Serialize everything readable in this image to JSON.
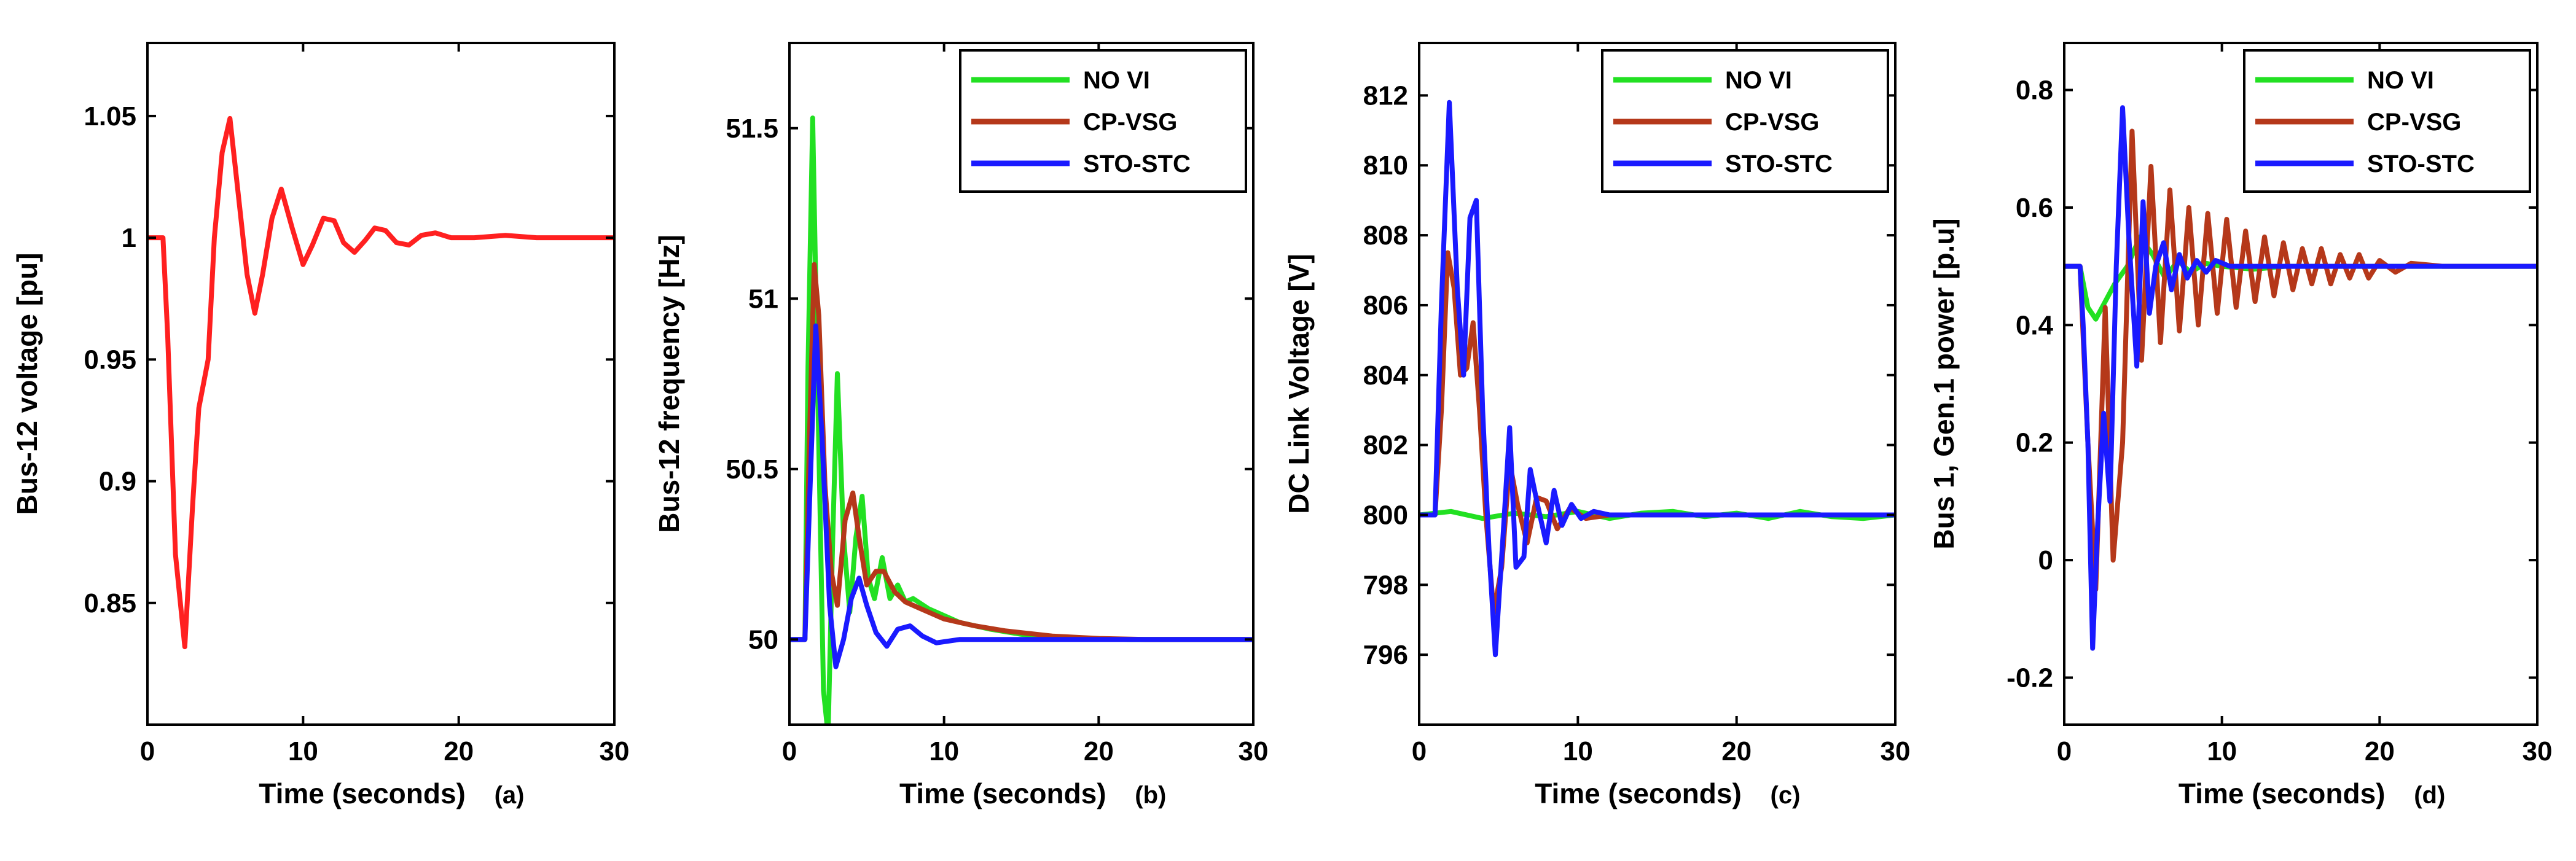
{
  "chart_data": [
    {
      "type": "line",
      "panel_label": "(a)",
      "xlabel": "Time (seconds)",
      "ylabel": "Bus-12 voltage [pu]",
      "xlim": [
        0,
        30
      ],
      "ylim": [
        0.8,
        1.08
      ],
      "xticks": [
        0,
        10,
        20,
        30
      ],
      "yticks": [
        0.85,
        0.9,
        0.95,
        1,
        1.05
      ],
      "legend": "none",
      "series": [
        {
          "name": "Bus-12 voltage",
          "color": "#ff2020",
          "x": [
            0,
            1,
            1.3,
            1.8,
            2.4,
            2.9,
            3.3,
            3.9,
            4.3,
            4.8,
            5.3,
            5.8,
            6.4,
            6.9,
            7.4,
            8.0,
            8.6,
            9.3,
            10.0,
            10.6,
            11.3,
            12.0,
            12.6,
            13.3,
            14.0,
            14.6,
            15.3,
            16.0,
            16.8,
            17.6,
            18.5,
            19.5,
            21,
            23,
            25,
            30
          ],
          "y": [
            1.0,
            1.0,
            0.96,
            0.87,
            0.832,
            0.89,
            0.93,
            0.95,
            1.0,
            1.035,
            1.049,
            1.02,
            0.985,
            0.969,
            0.985,
            1.008,
            1.02,
            1.004,
            0.989,
            0.997,
            1.008,
            1.007,
            0.998,
            0.994,
            0.999,
            1.004,
            1.003,
            0.998,
            0.997,
            1.001,
            1.002,
            1.0,
            1.0,
            1.001,
            1.0,
            1.0
          ]
        }
      ]
    },
    {
      "type": "line",
      "panel_label": "(b)",
      "xlabel": "Time (seconds)",
      "ylabel": "Bus-12 frequency [Hz]",
      "xlim": [
        0,
        30
      ],
      "ylim": [
        49.75,
        51.75
      ],
      "xticks": [
        0,
        10,
        20,
        30
      ],
      "yticks": [
        50,
        50.5,
        51,
        51.5
      ],
      "legend": "top-right",
      "series": [
        {
          "name": "NO VI",
          "color": "#22e022",
          "x": [
            0,
            1.0,
            1.2,
            1.5,
            1.8,
            2.2,
            2.5,
            2.8,
            3.1,
            3.5,
            3.9,
            4.3,
            4.7,
            5.1,
            5.5,
            6.0,
            6.5,
            7.0,
            7.5,
            8.0,
            9,
            10,
            11,
            13,
            15,
            18,
            22,
            30
          ],
          "y": [
            50,
            50,
            50.8,
            51.53,
            50.8,
            49.85,
            49.72,
            50.3,
            50.78,
            50.3,
            50.08,
            50.3,
            50.42,
            50.18,
            50.12,
            50.24,
            50.12,
            50.16,
            50.11,
            50.12,
            50.09,
            50.07,
            50.05,
            50.03,
            50.015,
            50.005,
            50.0,
            50.0
          ]
        },
        {
          "name": "CP-VSG",
          "color": "#b5381a",
          "x": [
            0,
            1.0,
            1.3,
            1.6,
            1.9,
            2.3,
            2.7,
            3.1,
            3.6,
            4.1,
            4.5,
            5.0,
            5.6,
            6.1,
            6.8,
            7.5,
            8.5,
            10,
            12,
            14,
            17,
            20,
            23,
            30
          ],
          "y": [
            50,
            50,
            50.6,
            51.1,
            50.95,
            50.45,
            50.2,
            50.1,
            50.35,
            50.43,
            50.3,
            50.16,
            50.2,
            50.2,
            50.14,
            50.11,
            50.09,
            50.06,
            50.04,
            50.025,
            50.01,
            50.003,
            50.0,
            50.0
          ]
        },
        {
          "name": "STO-STC",
          "color": "#1a1aff",
          "x": [
            0,
            1.0,
            1.3,
            1.7,
            2.1,
            2.6,
            3.0,
            3.5,
            4.0,
            4.5,
            5.0,
            5.6,
            6.3,
            7.0,
            7.8,
            8.6,
            9.5,
            11,
            13,
            30
          ],
          "y": [
            50,
            50,
            50.4,
            50.92,
            50.6,
            50.1,
            49.92,
            50.0,
            50.12,
            50.18,
            50.1,
            50.02,
            49.98,
            50.03,
            50.04,
            50.01,
            49.99,
            50.0,
            50.0,
            50.0
          ]
        }
      ]
    },
    {
      "type": "line",
      "panel_label": "(c)",
      "xlabel": "Time (seconds)",
      "ylabel": "DC Link Voltage [V]",
      "xlim": [
        0,
        30
      ],
      "ylim": [
        794,
        813.5
      ],
      "xticks": [
        0,
        10,
        20,
        30
      ],
      "yticks": [
        796,
        798,
        800,
        802,
        804,
        806,
        808,
        810,
        812
      ],
      "legend": "top-right",
      "series": [
        {
          "name": "NO VI",
          "color": "#22e022",
          "x": [
            0,
            2,
            4,
            6,
            8,
            10,
            12,
            14,
            16,
            18,
            20,
            22,
            24,
            26,
            28,
            30
          ],
          "y": [
            800,
            800.1,
            799.9,
            800.05,
            799.95,
            800.1,
            799.9,
            800.05,
            800.1,
            799.95,
            800.05,
            799.9,
            800.1,
            799.95,
            799.9,
            800
          ]
        },
        {
          "name": "CP-VSG",
          "color": "#b5381a",
          "x": [
            0,
            1.0,
            1.4,
            1.8,
            2.2,
            2.6,
            3.0,
            3.4,
            3.8,
            4.2,
            4.7,
            5.2,
            5.7,
            6.2,
            6.8,
            7.4,
            8.0,
            8.7,
            9.5,
            10.5,
            12,
            30
          ],
          "y": [
            800,
            800,
            803,
            807.5,
            806.5,
            804,
            804.2,
            805.5,
            803,
            800,
            797.2,
            798.5,
            801.5,
            800.3,
            799.2,
            800.5,
            800.4,
            799.6,
            800.2,
            799.9,
            800,
            800
          ]
        },
        {
          "name": "STO-STC",
          "color": "#1a1aff",
          "x": [
            0,
            1.0,
            1.4,
            1.9,
            2.4,
            2.8,
            3.2,
            3.6,
            4.0,
            4.4,
            4.8,
            5.3,
            5.7,
            6.1,
            6.6,
            7.0,
            7.5,
            8.0,
            8.5,
            9.0,
            9.6,
            10.2,
            11,
            12,
            30
          ],
          "y": [
            800,
            800,
            806,
            811.8,
            806.5,
            804,
            808.5,
            809,
            803,
            799,
            796,
            799.5,
            802.5,
            798.5,
            798.8,
            801.3,
            800.2,
            799.2,
            800.7,
            799.7,
            800.3,
            799.9,
            800.1,
            800,
            800
          ]
        }
      ]
    },
    {
      "type": "line",
      "panel_label": "(d)",
      "xlabel": "Time (seconds)",
      "ylabel": "Bus 1, Gen.1 power [p.u]",
      "xlim": [
        0,
        30
      ],
      "ylim": [
        -0.28,
        0.88
      ],
      "xticks": [
        0,
        10,
        20,
        30
      ],
      "yticks": [
        -0.2,
        0,
        0.2,
        0.4,
        0.6,
        0.8
      ],
      "legend": "top-right",
      "series": [
        {
          "name": "NO VI",
          "color": "#22e022",
          "x": [
            0,
            1.0,
            1.5,
            2.0,
            2.6,
            3.2,
            4.0,
            4.8,
            5.6,
            6.4,
            7.2,
            8.0,
            9,
            10,
            12,
            14,
            16,
            20,
            30
          ],
          "y": [
            0.5,
            0.5,
            0.43,
            0.41,
            0.44,
            0.47,
            0.5,
            0.55,
            0.52,
            0.48,
            0.51,
            0.49,
            0.505,
            0.5,
            0.495,
            0.5,
            0.5,
            0.5,
            0.5
          ]
        },
        {
          "name": "CP-VSG",
          "color": "#b5381a",
          "x": [
            0,
            1.0,
            1.5,
            2.0,
            2.6,
            3.1,
            3.7,
            4.3,
            4.9,
            5.5,
            6.1,
            6.7,
            7.3,
            7.9,
            8.5,
            9.1,
            9.7,
            10.3,
            10.9,
            11.5,
            12.1,
            12.7,
            13.3,
            13.9,
            14.5,
            15.1,
            15.7,
            16.3,
            16.9,
            17.5,
            18.1,
            18.7,
            19.3,
            20.0,
            21,
            22,
            24,
            30
          ],
          "y": [
            0.5,
            0.5,
            0.2,
            -0.05,
            0.43,
            0.0,
            0.2,
            0.73,
            0.34,
            0.67,
            0.37,
            0.63,
            0.39,
            0.6,
            0.4,
            0.59,
            0.42,
            0.58,
            0.43,
            0.56,
            0.44,
            0.55,
            0.45,
            0.54,
            0.46,
            0.53,
            0.47,
            0.53,
            0.47,
            0.52,
            0.48,
            0.52,
            0.48,
            0.51,
            0.49,
            0.505,
            0.5,
            0.5
          ]
        },
        {
          "name": "STO-STC",
          "color": "#1a1aff",
          "x": [
            0,
            1.0,
            1.2,
            1.5,
            1.8,
            2.1,
            2.5,
            2.9,
            3.3,
            3.7,
            4.1,
            4.6,
            5.0,
            5.4,
            5.8,
            6.3,
            6.8,
            7.3,
            7.8,
            8.4,
            9.0,
            9.6,
            10.5,
            12,
            30
          ],
          "y": [
            0.5,
            0.5,
            0.4,
            0.2,
            -0.15,
            0.05,
            0.25,
            0.1,
            0.5,
            0.77,
            0.55,
            0.33,
            0.61,
            0.42,
            0.5,
            0.54,
            0.46,
            0.52,
            0.48,
            0.51,
            0.49,
            0.51,
            0.5,
            0.5,
            0.5
          ]
        }
      ]
    }
  ]
}
